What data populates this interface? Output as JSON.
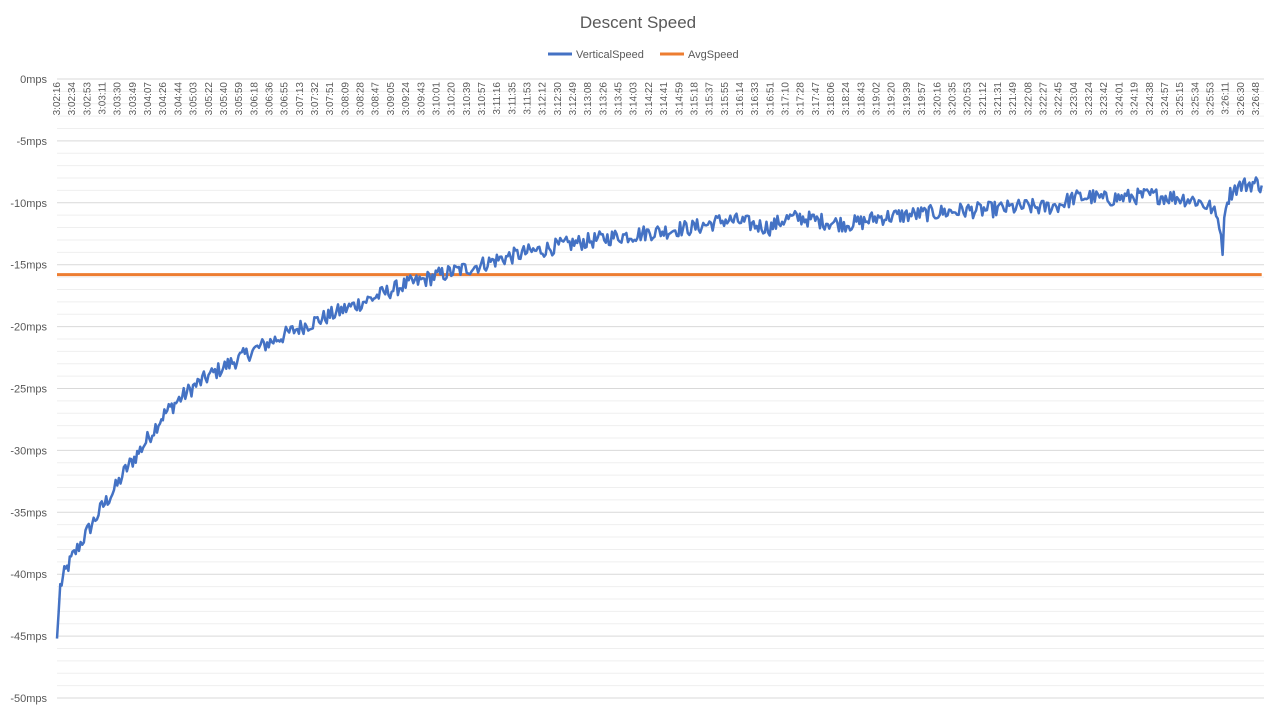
{
  "chart_data": {
    "type": "line",
    "title": "Descent Speed",
    "xlabel": "",
    "ylabel": "",
    "ylim": [
      -50,
      0
    ],
    "ytick_step": 5,
    "ytick_suffix": "mps",
    "grid": true,
    "legend_position": "top",
    "x_tick_labels": [
      "3:02:16",
      "3:02:34",
      "3:02:53",
      "3:03:11",
      "3:03:30",
      "3:03:49",
      "3:04:07",
      "3:04:26",
      "3:04:44",
      "3:05:03",
      "3:05:22",
      "3:05:40",
      "3:05:59",
      "3:06:18",
      "3:06:36",
      "3:06:55",
      "3:07:13",
      "3:07:32",
      "3:07:51",
      "3:08:09",
      "3:08:28",
      "3:08:47",
      "3:09:05",
      "3:09:24",
      "3:09:43",
      "3:10:01",
      "3:10:20",
      "3:10:39",
      "3:10:57",
      "3:11:16",
      "3:11:35",
      "3:11:53",
      "3:12:12",
      "3:12:30",
      "3:12:49",
      "3:13:08",
      "3:13:26",
      "3:13:45",
      "3:14:03",
      "3:14:22",
      "3:14:41",
      "3:14:59",
      "3:15:18",
      "3:15:37",
      "3:15:55",
      "3:16:14",
      "3:16:33",
      "3:16:51",
      "3:17:10",
      "3:17:28",
      "3:17:47",
      "3:18:06",
      "3:18:24",
      "3:18:43",
      "3:19:02",
      "3:19:20",
      "3:19:39",
      "3:19:57",
      "3:20:16",
      "3:20:35",
      "3:20:53",
      "3:21:12",
      "3:21:31",
      "3:21:49",
      "3:22:08",
      "3:22:27",
      "3:22:45",
      "3:23:04",
      "3:23:24",
      "3:23:42",
      "3:24:01",
      "3:24:19",
      "3:24:38",
      "3:24:57",
      "3:25:15",
      "3:25:34",
      "3:25:53",
      "3:26:11",
      "3:26:30",
      "3:26:48"
    ],
    "series": [
      {
        "name": "VerticalSpeed",
        "color": "#4472C4",
        "points": [
          [
            "3:02:16",
            -45.2
          ],
          [
            "3:02:20",
            -41.0
          ],
          [
            "3:02:25",
            -40.0
          ],
          [
            "3:02:30",
            -39.3
          ],
          [
            "3:02:35",
            -38.6
          ],
          [
            "3:02:45",
            -37.5
          ],
          [
            "3:02:53",
            -36.6
          ],
          [
            "3:03:05",
            -35.3
          ],
          [
            "3:03:11",
            -34.6
          ],
          [
            "3:03:20",
            -33.8
          ],
          [
            "3:03:30",
            -32.8
          ],
          [
            "3:03:40",
            -31.6
          ],
          [
            "3:03:49",
            -30.8
          ],
          [
            "3:04:00",
            -29.8
          ],
          [
            "3:04:07",
            -29.1
          ],
          [
            "3:04:17",
            -28.1
          ],
          [
            "3:04:26",
            -27.2
          ],
          [
            "3:04:35",
            -26.6
          ],
          [
            "3:04:44",
            -26.0
          ],
          [
            "3:05:03",
            -24.9
          ],
          [
            "3:05:22",
            -24.0
          ],
          [
            "3:05:40",
            -23.3
          ],
          [
            "3:05:59",
            -22.6
          ],
          [
            "3:06:18",
            -21.9
          ],
          [
            "3:06:36",
            -21.3
          ],
          [
            "3:06:55",
            -20.7
          ],
          [
            "3:07:13",
            -20.1
          ],
          [
            "3:07:32",
            -19.6
          ],
          [
            "3:07:51",
            -19.1
          ],
          [
            "3:08:09",
            -18.6
          ],
          [
            "3:08:28",
            -18.1
          ],
          [
            "3:08:47",
            -17.6
          ],
          [
            "3:09:05",
            -17.1
          ],
          [
            "3:09:24",
            -16.6
          ],
          [
            "3:09:43",
            -16.3
          ],
          [
            "3:10:01",
            -15.9
          ],
          [
            "3:10:20",
            -15.6
          ],
          [
            "3:10:39",
            -15.3
          ],
          [
            "3:10:57",
            -15.0
          ],
          [
            "3:11:16",
            -14.6
          ],
          [
            "3:11:35",
            -14.3
          ],
          [
            "3:11:53",
            -14.0
          ],
          [
            "3:12:12",
            -13.8
          ],
          [
            "3:12:30",
            -13.5
          ],
          [
            "3:12:49",
            -13.3
          ],
          [
            "3:13:08",
            -13.1
          ],
          [
            "3:13:26",
            -12.9
          ],
          [
            "3:13:45",
            -12.7
          ],
          [
            "3:14:03",
            -12.6
          ],
          [
            "3:14:22",
            -12.4
          ],
          [
            "3:14:41",
            -12.3
          ],
          [
            "3:14:59",
            -12.1
          ],
          [
            "3:15:18",
            -12.0
          ],
          [
            "3:15:37",
            -11.7
          ],
          [
            "3:15:55",
            -11.4
          ],
          [
            "3:16:14",
            -11.5
          ],
          [
            "3:16:33",
            -11.8
          ],
          [
            "3:16:51",
            -12.0
          ],
          [
            "3:17:10",
            -11.3
          ],
          [
            "3:17:28",
            -11.2
          ],
          [
            "3:17:47",
            -11.4
          ],
          [
            "3:18:06",
            -11.6
          ],
          [
            "3:18:24",
            -11.7
          ],
          [
            "3:18:43",
            -11.6
          ],
          [
            "3:19:02",
            -11.2
          ],
          [
            "3:19:20",
            -11.1
          ],
          [
            "3:19:39",
            -11.0
          ],
          [
            "3:19:57",
            -10.9
          ],
          [
            "3:20:16",
            -10.8
          ],
          [
            "3:20:35",
            -10.7
          ],
          [
            "3:20:53",
            -10.6
          ],
          [
            "3:21:12",
            -10.6
          ],
          [
            "3:21:31",
            -10.5
          ],
          [
            "3:21:49",
            -10.4
          ],
          [
            "3:22:08",
            -10.3
          ],
          [
            "3:22:27",
            -10.4
          ],
          [
            "3:22:45",
            -10.2
          ],
          [
            "3:23:04",
            -9.6
          ],
          [
            "3:23:24",
            -9.5
          ],
          [
            "3:23:42",
            -9.7
          ],
          [
            "3:24:01",
            -9.6
          ],
          [
            "3:24:19",
            -9.5
          ],
          [
            "3:24:38",
            -9.4
          ],
          [
            "3:24:57",
            -9.5
          ],
          [
            "3:25:15",
            -9.6
          ],
          [
            "3:25:34",
            -9.8
          ],
          [
            "3:25:53",
            -10.4
          ],
          [
            "3:26:03",
            -11.6
          ],
          [
            "3:26:07",
            -13.6
          ],
          [
            "3:26:11",
            -9.9
          ],
          [
            "3:26:20",
            -8.9
          ],
          [
            "3:26:30",
            -8.6
          ],
          [
            "3:26:48",
            -8.4
          ],
          [
            "3:26:55",
            -8.6
          ]
        ]
      },
      {
        "name": "AvgSpeed",
        "color": "#ED7D31",
        "points": [
          [
            "3:02:16",
            -15.8
          ],
          [
            "3:26:55",
            -15.8
          ]
        ]
      }
    ]
  }
}
